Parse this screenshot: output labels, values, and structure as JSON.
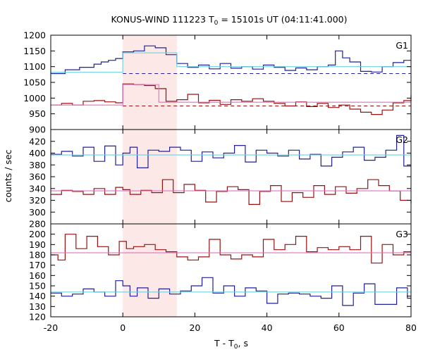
{
  "chart_data": {
    "type": "line",
    "title_main": "KONUS-WIND 111223 T",
    "title_sub": "0",
    "title_rest": " = 15101s UT (04:11:41.000)",
    "xlabel_main": "T - T",
    "xlabel_sub": "0",
    "xlabel_rest": ", s",
    "ylabel": "counts / sec",
    "xlim": [
      -20,
      80
    ],
    "x_ticks": [
      "-20",
      "0",
      "20",
      "40",
      "60",
      "80"
    ],
    "shaded_interval": [
      0,
      15
    ],
    "colors": {
      "blue": "#1f1fa0",
      "red": "#9a1010",
      "cyan": "#6ecfe0",
      "pink": "#e070c0",
      "shade": "#fde8e8"
    },
    "panels": [
      {
        "label": "G1",
        "ylim": [
          900,
          1200
        ],
        "y_ticks": [
          "900",
          "950",
          "1000",
          "1050",
          "1100",
          "1150",
          "1200"
        ],
        "series": [
          {
            "color": "blue",
            "edges": [
              -20,
              -16,
              -12,
              -8,
              -6,
              -4,
              -2,
              0,
              3,
              6,
              9,
              12,
              15,
              18,
              21,
              24,
              27,
              30,
              33,
              36,
              39,
              42,
              45,
              48,
              51,
              54,
              57,
              59,
              61,
              63,
              66,
              69,
              72,
              75,
              78,
              80
            ],
            "values": [
              1078,
              1090,
              1098,
              1108,
              1115,
              1120,
              1126,
              1147,
              1150,
              1166,
              1160,
              1138,
              1110,
              1098,
              1105,
              1093,
              1110,
              1095,
              1100,
              1092,
              1105,
              1098,
              1088,
              1096,
              1090,
              1100,
              1105,
              1150,
              1128,
              1115,
              1085,
              1083,
              1100,
              1113,
              1120
            ],
            "bg_level": 1078,
            "fit": [
              {
                "x": [
                  -20,
                  0
                ],
                "y": 1082
              },
              {
                "x": [
                  0,
                  15
                ],
                "y": 1144
              },
              {
                "x": [
                  15,
                  80
                ],
                "y": 1100
              }
            ]
          },
          {
            "color": "red",
            "edges": [
              -20,
              -17,
              -14,
              -11,
              -8,
              -5,
              -2,
              0,
              3,
              6,
              9,
              12,
              15,
              18,
              21,
              24,
              27,
              30,
              33,
              36,
              39,
              42,
              45,
              48,
              51,
              54,
              57,
              60,
              63,
              66,
              69,
              72,
              75,
              78,
              80
            ],
            "values": [
              978,
              983,
              978,
              990,
              992,
              988,
              985,
              1045,
              1043,
              1040,
              1030,
              990,
              995,
              1012,
              985,
              993,
              980,
              995,
              990,
              998,
              990,
              983,
              975,
              988,
              973,
              983,
              970,
              978,
              965,
              955,
              948,
              962,
              985,
              992,
              1010
            ],
            "bg_level": 975,
            "fit": [
              {
                "x": [
                  -20,
                  0
                ],
                "y": 978
              },
              {
                "x": [
                  0,
                  10
                ],
                "y": 1043
              },
              {
                "x": [
                  10,
                  80
                ],
                "y": 987
              }
            ]
          }
        ]
      },
      {
        "label": "G2",
        "ylim": [
          280,
          440
        ],
        "y_ticks": [
          "280",
          "300",
          "320",
          "340",
          "360",
          "380",
          "400",
          "420"
        ],
        "series": [
          {
            "color": "blue",
            "edges": [
              -20,
              -17,
              -14,
              -11,
              -8,
              -5,
              -2,
              0,
              2,
              4,
              7,
              10,
              13,
              16,
              19,
              22,
              25,
              28,
              31,
              34,
              37,
              40,
              43,
              46,
              49,
              52,
              55,
              58,
              61,
              64,
              67,
              70,
              73,
              76,
              78,
              80
            ],
            "values": [
              398,
              403,
              395,
              410,
              386,
              412,
              380,
              400,
              410,
              375,
              405,
              403,
              410,
              405,
              386,
              402,
              392,
              400,
              413,
              385,
              405,
              400,
              395,
              405,
              390,
              398,
              378,
              393,
              402,
              410,
              388,
              393,
              405,
              430,
              378
            ],
            "fit": [
              {
                "x": [
                  -20,
                  80
                ],
                "y": 397
              }
            ]
          },
          {
            "color": "red",
            "edges": [
              -20,
              -17,
              -14,
              -11,
              -8,
              -5,
              -2,
              0,
              2,
              5,
              8,
              11,
              14,
              17,
              20,
              23,
              26,
              29,
              32,
              35,
              38,
              41,
              44,
              47,
              50,
              53,
              56,
              59,
              62,
              65,
              68,
              71,
              74,
              77,
              80
            ],
            "values": [
              330,
              337,
              335,
              330,
              340,
              330,
              342,
              338,
              330,
              337,
              333,
              355,
              333,
              347,
              337,
              317,
              335,
              343,
              338,
              313,
              335,
              345,
              318,
              333,
              325,
              345,
              330,
              343,
              332,
              340,
              355,
              345,
              336,
              320,
              315
            ],
            "fit": [
              {
                "x": [
                  -20,
                  80
                ],
                "y": 336
              }
            ]
          }
        ]
      },
      {
        "label": "G3",
        "ylim": [
          120,
          210
        ],
        "y_ticks": [
          "120",
          "130",
          "140",
          "150",
          "160",
          "170",
          "180",
          "190",
          "200"
        ],
        "series": [
          {
            "color": "red",
            "edges": [
              -20,
              -18,
              -16,
              -13,
              -10,
              -7,
              -4,
              -1,
              1,
              3,
              6,
              9,
              12,
              15,
              18,
              21,
              24,
              27,
              30,
              33,
              36,
              39,
              42,
              45,
              48,
              51,
              54,
              57,
              60,
              63,
              66,
              69,
              72,
              75,
              78,
              80
            ],
            "values": [
              180,
              175,
              200,
              186,
              198,
              188,
              180,
              193,
              186,
              188,
              190,
              185,
              183,
              178,
              175,
              178,
              195,
              180,
              176,
              180,
              178,
              195,
              185,
              190,
              198,
              183,
              187,
              185,
              188,
              185,
              198,
              172,
              190,
              180,
              183
            ],
            "fit": [
              {
                "x": [
                  -20,
                  80
                ],
                "y": 182
              }
            ]
          },
          {
            "color": "blue",
            "edges": [
              -20,
              -17,
              -14,
              -11,
              -8,
              -5,
              -2,
              0,
              2,
              4,
              7,
              10,
              13,
              16,
              19,
              22,
              25,
              28,
              31,
              34,
              37,
              40,
              43,
              46,
              49,
              52,
              55,
              58,
              61,
              64,
              67,
              70,
              73,
              76,
              79,
              80
            ],
            "values": [
              143,
              140,
              142,
              147,
              144,
              140,
              155,
              150,
              140,
              148,
              138,
              147,
              142,
              145,
              150,
              158,
              143,
              150,
              140,
              148,
              145,
              133,
              142,
              143,
              142,
              140,
              138,
              150,
              131,
              143,
              152,
              132,
              132,
              148,
              138
            ],
            "fit": [
              {
                "x": [
                  -20,
                  80
                ],
                "y": 144
              }
            ]
          }
        ]
      }
    ]
  }
}
